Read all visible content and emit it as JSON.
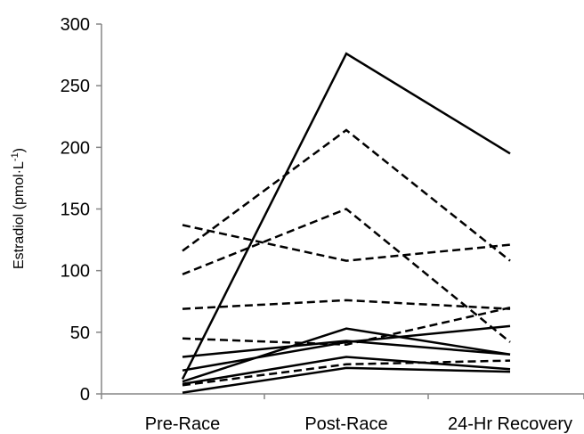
{
  "chart_data": {
    "type": "line",
    "title": "",
    "xlabel": "",
    "ylabel_main": "Estradiol (pmol",
    "ylabel_dot": "·",
    "ylabel_unit": "L",
    "ylabel_sup": "-1",
    "ylabel_close": ")",
    "ylim": [
      0,
      300
    ],
    "yticks": [
      "0",
      "50",
      "100",
      "150",
      "200",
      "250",
      "300"
    ],
    "categories": [
      "Pre-Race",
      "Post-Race",
      "24-Hr Recovery"
    ],
    "grid": false,
    "legend": "none",
    "series": [
      {
        "style": "solid",
        "values": [
          12,
          276,
          195
        ]
      },
      {
        "style": "solid",
        "values": [
          30,
          43,
          32
        ]
      },
      {
        "style": "solid",
        "values": [
          19,
          42,
          55
        ]
      },
      {
        "style": "solid",
        "values": [
          10,
          53,
          32
        ]
      },
      {
        "style": "solid",
        "values": [
          8,
          30,
          20
        ]
      },
      {
        "style": "solid",
        "values": [
          1,
          21,
          18
        ]
      },
      {
        "style": "dashed",
        "values": [
          116,
          214,
          108
        ]
      },
      {
        "style": "dashed",
        "values": [
          137,
          108,
          121
        ]
      },
      {
        "style": "dashed",
        "values": [
          97,
          150,
          42
        ]
      },
      {
        "style": "dashed",
        "values": [
          69,
          76,
          69
        ]
      },
      {
        "style": "dashed",
        "values": [
          45,
          40,
          70
        ]
      },
      {
        "style": "dashed",
        "values": [
          7,
          24,
          27
        ]
      }
    ]
  }
}
